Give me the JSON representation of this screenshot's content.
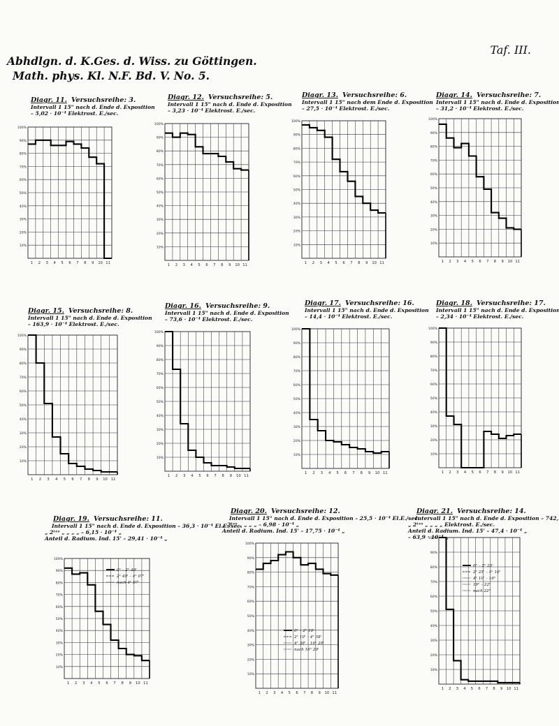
{
  "header": {
    "line1": "Abhdlgn. d. K.Ges. d. Wiss. zu Göttingen.",
    "line2": "Math. phys. Kl. N.F. Bd. V. No. 5.",
    "plate": "Taf. III."
  },
  "x_ticks": [
    "1",
    "2",
    "3",
    "4",
    "5",
    "6",
    "7",
    "8",
    "9",
    "10",
    "11"
  ],
  "chart_data": [
    {
      "type": "bar",
      "title": "Diagr. 11.",
      "series_label": "Versuchsreihe: 3.",
      "subtitle": [
        "Intervall 1  15\" nach d. Ende d. Exposition",
        "– 5,02 · 10⁻⁴ Elektrost. E./sec."
      ],
      "y_ticks": [
        "100%",
        "90%",
        "80%",
        "70%",
        "60%",
        "50%",
        "40%",
        "30%",
        "20%",
        "10%"
      ],
      "categories": [
        "1",
        "2",
        "3",
        "4",
        "5",
        "6",
        "7",
        "8",
        "9",
        "10",
        "11"
      ],
      "values": [
        87,
        90,
        90,
        86,
        86,
        89,
        87,
        84,
        77,
        72,
        0
      ],
      "ylim": [
        0,
        100
      ]
    },
    {
      "type": "bar",
      "title": "Diagr. 12.",
      "series_label": "Versuchsreihe: 5.",
      "subtitle": [
        "Intervall 1  15\" nach d. Ende d. Exposition",
        "– 3,23 · 10⁻⁴ Elektrost. E./sec."
      ],
      "y_ticks": [
        "100%",
        "90%",
        "80%",
        "70%",
        "60%",
        "50%",
        "40%",
        "30%",
        "20%",
        "10%"
      ],
      "categories": [
        "1",
        "2",
        "3",
        "4",
        "5",
        "6",
        "7",
        "8",
        "9",
        "10",
        "11"
      ],
      "values": [
        93,
        90,
        93,
        92,
        83,
        78,
        78,
        76,
        72,
        67,
        66
      ],
      "ylim": [
        0,
        100
      ]
    },
    {
      "type": "bar",
      "title": "Diagr. 13.",
      "series_label": "Versuchsreihe: 6.",
      "subtitle": [
        "Intervall 1  15\" nach dem Ende d. Exposition",
        "– 27,5 · 10⁻⁴ Elektrost. E./sec."
      ],
      "y_ticks": [
        "100%",
        "90%",
        "80%",
        "70%",
        "60%",
        "50%",
        "40%",
        "30%",
        "20%",
        "10%"
      ],
      "categories": [
        "1",
        "2",
        "3",
        "4",
        "5",
        "6",
        "7",
        "8",
        "9",
        "10",
        "11"
      ],
      "values": [
        97,
        95,
        93,
        88,
        72,
        63,
        56,
        45,
        40,
        35,
        33
      ],
      "ylim": [
        0,
        100
      ]
    },
    {
      "type": "bar",
      "title": "Diagr. 14.",
      "series_label": "Versuchsreihe: 7.",
      "subtitle": [
        "Intervall 1  15\" nach d. Ende d. Exposition",
        "– 31,2 · 10⁻⁴ Elektrost. E./sec."
      ],
      "y_ticks": [
        "100%",
        "90%",
        "80%",
        "70%",
        "60%",
        "50%",
        "40%",
        "30%",
        "20%",
        "10%"
      ],
      "categories": [
        "1",
        "2",
        "3",
        "4",
        "5",
        "6",
        "7",
        "8",
        "9",
        "10",
        "11"
      ],
      "values": [
        96,
        86,
        79,
        82,
        73,
        58,
        49,
        32,
        28,
        21,
        20
      ],
      "ylim": [
        0,
        100
      ]
    },
    {
      "type": "bar",
      "title": "Diagr. 15.",
      "series_label": "Versuchsreihe: 8.",
      "subtitle": [
        "Intervall 1  15\" nach d. Ende d. Exposition",
        "– 163,9 · 10⁻⁴ Elektrost. E./sec."
      ],
      "y_ticks": [
        "100%",
        "90%",
        "80%",
        "70%",
        "60%",
        "50%",
        "40%",
        "30%",
        "20%",
        "10%"
      ],
      "categories": [
        "1",
        "2",
        "3",
        "4",
        "5",
        "6",
        "7",
        "8",
        "9",
        "10",
        "11"
      ],
      "values": [
        100,
        80,
        51,
        27,
        15,
        8,
        6,
        4,
        3,
        2,
        2
      ],
      "ylim": [
        0,
        100
      ]
    },
    {
      "type": "bar",
      "title": "Diagr. 16.",
      "series_label": "Versuchsreihe: 9.",
      "subtitle": [
        "Intervall 1  15\" nach d. Ende d. Exposition",
        "– 73,6 · 10⁻⁴ Elektrost. E./sec."
      ],
      "y_ticks": [
        "100%",
        "90%",
        "80%",
        "70%",
        "60%",
        "50%",
        "40%",
        "30%",
        "20%",
        "10%"
      ],
      "categories": [
        "1",
        "2",
        "3",
        "4",
        "5",
        "6",
        "7",
        "8",
        "9",
        "10",
        "11"
      ],
      "values": [
        100,
        73,
        34,
        15,
        10,
        6,
        4,
        4,
        3,
        2,
        2
      ],
      "ylim": [
        0,
        100
      ]
    },
    {
      "type": "bar",
      "title": "Diagr. 17.",
      "series_label": "Versuchsreihe: 16.",
      "subtitle": [
        "Intervall 1  15\" nach d. Ende d. Exposition",
        "– 14,4 · 10⁻⁴ Elektrost. E./sec."
      ],
      "y_ticks": [
        "100%",
        "90%",
        "80%",
        "70%",
        "60%",
        "50%",
        "40%",
        "30%",
        "20%",
        "10%"
      ],
      "categories": [
        "1",
        "2",
        "3",
        "4",
        "5",
        "6",
        "7",
        "8",
        "9",
        "10",
        "11"
      ],
      "values": [
        100,
        35,
        27,
        20,
        19,
        17,
        15,
        14,
        12,
        11,
        12
      ],
      "ylim": [
        0,
        100
      ]
    },
    {
      "type": "bar",
      "title": "Diagr. 18.",
      "series_label": "Versuchsreihe: 17.",
      "subtitle": [
        "Intervall 1  15\" nach d. Ende d. Exposition",
        "– 2,34 · 10⁻⁴ Elektrost. E./sec."
      ],
      "y_ticks": [
        "100%",
        "90%",
        "80%",
        "70%",
        "60%",
        "50%",
        "40%",
        "30%",
        "20%",
        "10%"
      ],
      "categories": [
        "1",
        "2",
        "3",
        "4",
        "5",
        "6",
        "7",
        "8",
        "9",
        "10",
        "11"
      ],
      "values": [
        100,
        37,
        31,
        0,
        0,
        0,
        26,
        24,
        21,
        23,
        24
      ],
      "ylim": [
        0,
        100
      ]
    },
    {
      "type": "bar",
      "title": "Diagr. 19.",
      "series_label": "Versuchsreihe: 11.",
      "subtitle": [
        "Intervall 1  15\" nach d. Ende d. Exposition – 36,3 · 10⁻⁴ El.E./sec.",
        "        „        2ᵗᵉˢ    „      „       „       „     –  6,15 · 10⁻⁴    „",
        "Anteil d. Radium. Ind. 15'                    –  29,41 · 10⁻⁴    „"
      ],
      "legend": [
        "0ʰ – 2ʰ 49'",
        "2ʰ 49' – 4ʰ 07'",
        "nach 4ʰ 07'"
      ],
      "y_ticks": [
        "100%",
        "90%",
        "80%",
        "70%",
        "60%",
        "50%",
        "40%",
        "30%",
        "20%",
        "10%"
      ],
      "categories": [
        "1",
        "2",
        "3",
        "4",
        "5",
        "6",
        "7",
        "8",
        "9",
        "10",
        "11"
      ],
      "values": [
        92,
        87,
        88,
        78,
        56,
        45,
        32,
        25,
        20,
        19,
        15
      ],
      "ylim": [
        0,
        100
      ]
    },
    {
      "type": "bar",
      "title": "Diagr. 20.",
      "series_label": "Versuchsreihe: 12.",
      "subtitle": [
        "Intervall 1  15\" nach d. Ende d. Exposition – 25,5 · 10⁻⁴ El.E./sec.",
        "        „        2ᵗᵉˢ    „      „       „       „     –  6,98 · 10⁻⁴    „",
        "Anteil d. Radium. Ind. 15'                    –  17,75 · 10⁻⁴    „"
      ],
      "legend": [
        "0ʰ – 2ʰ 10'",
        "2ʰ 10' – 4ʰ 38'",
        "4ʰ 38' – 16ʰ 29'",
        "nach 16ʰ 29'"
      ],
      "y_ticks": [
        "100%",
        "90%",
        "80%",
        "70%",
        "60%",
        "50%",
        "40%",
        "30%",
        "20%",
        "10%"
      ],
      "categories": [
        "1",
        "2",
        "3",
        "4",
        "5",
        "6",
        "7",
        "8",
        "9",
        "10",
        "11"
      ],
      "values": [
        82,
        86,
        88,
        92,
        94,
        90,
        85,
        86,
        82,
        79,
        78
      ],
      "ylim": [
        0,
        100
      ]
    },
    {
      "type": "bar",
      "title": "Diagr. 21.",
      "series_label": "Versuchsreihe: 14.",
      "subtitle": [
        "Intervall 1  15\" nach d. Ende d. Exposition – 742,1 · 10⁻⁴",
        "        „        2ᵗᵉˢ    „      „       „       „            Elektrost. E./sec.",
        "Anteil d. Radium. Ind. 15'               – 47,4 · 10⁻⁴    „",
        "                                            – 63,9 · 10⁻⁴    „"
      ],
      "legend": [
        "0ʰ – 2ʰ 25'",
        "2ʰ 25' – 4ʰ 10'",
        "4ʰ 10' – 16ʰ",
        "16ʰ – 22ʰ",
        "nach 22ʰ"
      ],
      "y_ticks": [
        "100%",
        "90%",
        "80%",
        "70%",
        "60%",
        "50%",
        "40%",
        "30%",
        "20%",
        "10%"
      ],
      "categories": [
        "1",
        "2",
        "3",
        "4",
        "5",
        "6",
        "7",
        "8",
        "9",
        "10",
        "11"
      ],
      "values": [
        100,
        51,
        16,
        3,
        2,
        2,
        2,
        2,
        1,
        1,
        1
      ],
      "ylim": [
        0,
        100
      ]
    }
  ]
}
